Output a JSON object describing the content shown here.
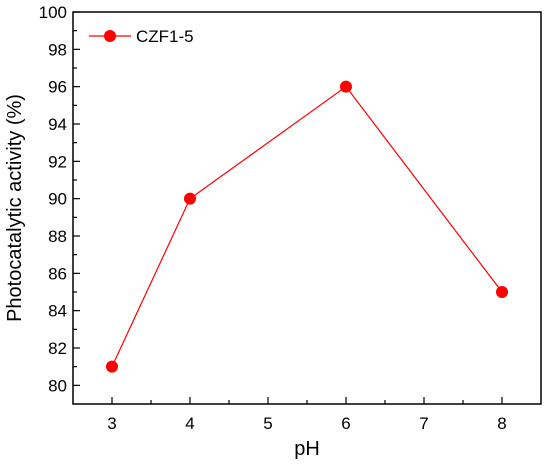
{
  "chart_data": {
    "type": "line",
    "xlabel": "pH",
    "ylabel": "Photocatalytic activity (%)",
    "xlim": [
      2.5,
      8.5
    ],
    "ylim": [
      79,
      100
    ],
    "x_ticks": [
      3,
      4,
      5,
      6,
      7,
      8
    ],
    "y_ticks": [
      80,
      82,
      84,
      86,
      88,
      90,
      92,
      94,
      96,
      98,
      100
    ],
    "grid": false,
    "legend_position": "top-left",
    "series": [
      {
        "name": "CZF1-5",
        "color": "#ff0000",
        "marker": "circle",
        "x": [
          3,
          4,
          6,
          8
        ],
        "y": [
          81,
          90,
          96,
          85
        ]
      }
    ]
  }
}
